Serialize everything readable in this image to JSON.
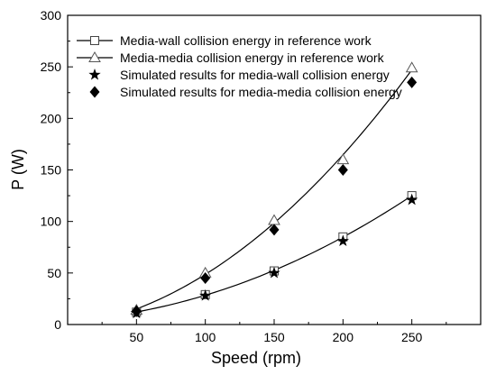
{
  "chart_data": {
    "type": "line",
    "title": "",
    "xlabel": "Speed (rpm)",
    "ylabel": "P (W)",
    "xlim": [
      0,
      300
    ],
    "ylim": [
      0,
      300
    ],
    "xticks": [
      50,
      100,
      150,
      200,
      250
    ],
    "yticks": [
      0,
      50,
      100,
      150,
      200,
      250,
      300
    ],
    "grid": false,
    "legend_position": "top-left",
    "x": [
      50,
      100,
      150,
      200,
      250
    ],
    "series": [
      {
        "name": "Media-wall collision energy in reference work",
        "marker": "square-open",
        "line": true,
        "values": [
          12,
          29,
          52,
          85,
          125
        ]
      },
      {
        "name": "Media-media collision energy in reference work",
        "marker": "triangle-open",
        "line": true,
        "values": [
          14,
          50,
          101,
          160,
          249
        ]
      },
      {
        "name": "Simulated results for media-wall collision energy",
        "marker": "star-filled",
        "line": false,
        "values": [
          11,
          28,
          50,
          81,
          121
        ]
      },
      {
        "name": "Simulated results for media-media collision energy",
        "marker": "diamond-filled",
        "line": false,
        "values": [
          13,
          45,
          92,
          150,
          235
        ]
      }
    ]
  }
}
